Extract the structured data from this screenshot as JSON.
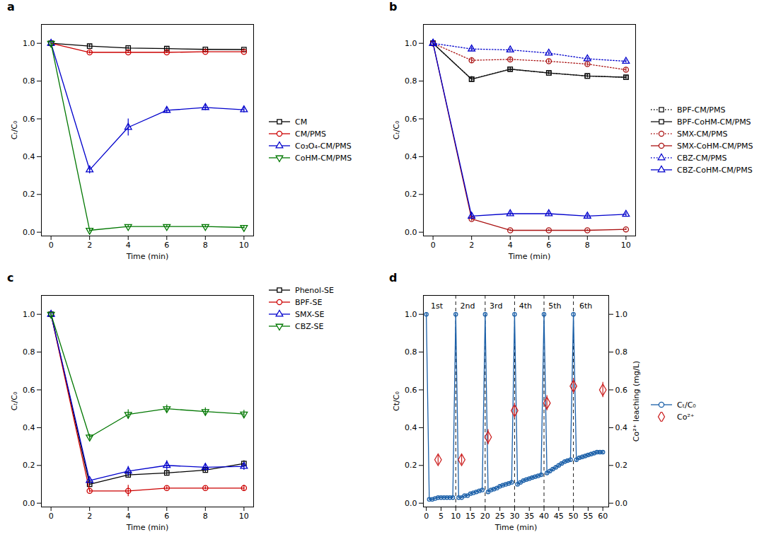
{
  "chart_data": [
    {
      "type": "line",
      "title": "a",
      "xlabel": "Time (min)",
      "ylabel": "Cₜ/C₀",
      "x": [
        0,
        2,
        4,
        6,
        8,
        10
      ],
      "xlim": [
        -0.5,
        10.5
      ],
      "xticks": [
        0,
        2,
        4,
        6,
        8,
        10
      ],
      "ylim": [
        -0.02,
        1.1
      ],
      "yticks": [
        {
          "value": 0,
          "label": "0.0"
        },
        0.2,
        0.4,
        0.6,
        0.8,
        {
          "value": 1,
          "label": "1.0"
        }
      ],
      "grid": false,
      "legend": "right",
      "series": [
        {
          "name": "CM",
          "color": "#000000",
          "marker": "square",
          "line_style": "solid",
          "values": [
            1.0,
            0.985,
            0.975,
            0.972,
            0.968,
            0.967
          ],
          "errors": [
            0.005,
            0.008,
            0.007,
            0.006,
            0.006,
            0.006
          ]
        },
        {
          "name": "CM/PMS",
          "color": "#cc0000",
          "marker": "circle",
          "line_style": "solid",
          "values": [
            1.0,
            0.952,
            0.952,
            0.952,
            0.955,
            0.955
          ],
          "errors": [
            0.005,
            0.008,
            0.006,
            0.006,
            0.006,
            0.006
          ]
        },
        {
          "name": "Co₃O₄-CM/PMS",
          "color": "#0000cc",
          "marker": "triangle-up",
          "line_style": "solid",
          "values": [
            1.0,
            0.33,
            0.555,
            0.645,
            0.66,
            0.648
          ],
          "errors": [
            0.005,
            0.02,
            0.045,
            0.015,
            0.015,
            0.015
          ]
        },
        {
          "name": "CoHM-CM/PMS",
          "color": "#007700",
          "marker": "triangle-down",
          "line_style": "solid",
          "values": [
            1.0,
            0.01,
            0.03,
            0.03,
            0.03,
            0.025
          ],
          "errors": [
            0.005,
            0.01,
            0.007,
            0.007,
            0.007,
            0.007
          ]
        }
      ]
    },
    {
      "type": "line",
      "title": "b",
      "xlabel": "Time (min)",
      "ylabel": "Cₜ/C₀",
      "x": [
        0,
        2,
        4,
        6,
        8,
        10
      ],
      "xlim": [
        -0.5,
        10.5
      ],
      "xticks": [
        0,
        2,
        4,
        6,
        8,
        10
      ],
      "ylim": [
        -0.02,
        1.1
      ],
      "yticks": [
        {
          "value": 0,
          "label": "0.0"
        },
        0.2,
        0.4,
        0.6,
        0.8,
        {
          "value": 1,
          "label": "1.0"
        }
      ],
      "grid": false,
      "legend": "right",
      "series": [
        {
          "name": "BPF-CM/PMS",
          "color": "#111111",
          "marker": "square",
          "line_style": "dotted",
          "values": [
            1.0,
            0.81,
            0.863,
            0.843,
            0.827,
            0.82
          ],
          "errors": [
            0.005,
            0.015,
            0.01,
            0.01,
            0.01,
            0.01
          ]
        },
        {
          "name": "BPF-CoHM-CM/PMS",
          "color": "#111111",
          "marker": "square",
          "line_style": "solid",
          "values": [
            1.0,
            0.81,
            0.863,
            0.843,
            0.827,
            0.82
          ],
          "errors": [
            0.005,
            0.012,
            0.008,
            0.008,
            0.008,
            0.008
          ]
        },
        {
          "name": "SMX-CM/PMS",
          "color": "#aa1111",
          "marker": "circle",
          "line_style": "dotted",
          "values": [
            1.0,
            0.91,
            0.915,
            0.905,
            0.89,
            0.86
          ],
          "errors": [
            0.005,
            0.015,
            0.01,
            0.01,
            0.01,
            0.01
          ]
        },
        {
          "name": "SMX-CoHM-CM/PMS",
          "color": "#aa1111",
          "marker": "circle",
          "line_style": "solid",
          "values": [
            1.0,
            0.07,
            0.01,
            0.01,
            0.01,
            0.015
          ],
          "errors": [
            0.005,
            0.01,
            0.005,
            0.005,
            0.005,
            0.005
          ]
        },
        {
          "name": "CBZ-CM/PMS",
          "color": "#0000cc",
          "marker": "triangle-up",
          "line_style": "dotted",
          "values": [
            1.0,
            0.97,
            0.965,
            0.948,
            0.918,
            0.905
          ],
          "errors": [
            0.005,
            0.01,
            0.008,
            0.008,
            0.008,
            0.008
          ]
        },
        {
          "name": "CBZ-CoHM-CM/PMS",
          "color": "#0000cc",
          "marker": "triangle-up",
          "line_style": "solid",
          "values": [
            1.0,
            0.085,
            0.098,
            0.098,
            0.085,
            0.095
          ],
          "errors": [
            0.005,
            0.015,
            0.01,
            0.01,
            0.01,
            0.01
          ]
        }
      ]
    },
    {
      "type": "line",
      "title": "c",
      "xlabel": "Time (min)",
      "ylabel": "Cₜ/C₀",
      "x": [
        0,
        2,
        4,
        6,
        8,
        10
      ],
      "xlim": [
        -0.5,
        10.5
      ],
      "xticks": [
        0,
        2,
        4,
        6,
        8,
        10
      ],
      "ylim": [
        -0.02,
        1.1
      ],
      "yticks": [
        {
          "value": 0,
          "label": "0.0"
        },
        0.2,
        0.4,
        0.6,
        0.8,
        {
          "value": 1,
          "label": "1.0"
        }
      ],
      "grid": false,
      "legend": "upper right",
      "series": [
        {
          "name": "Phenol-SE",
          "color": "#000000",
          "marker": "square",
          "line_style": "solid",
          "values": [
            1.0,
            0.1,
            0.15,
            0.16,
            0.175,
            0.21
          ],
          "errors": [
            0.005,
            0.01,
            0.012,
            0.012,
            0.012,
            0.015
          ]
        },
        {
          "name": "BPF-SE",
          "color": "#cc0000",
          "marker": "circle",
          "line_style": "solid",
          "values": [
            1.0,
            0.065,
            0.065,
            0.08,
            0.08,
            0.08
          ],
          "errors": [
            0.005,
            0.008,
            0.03,
            0.008,
            0.008,
            0.015
          ]
        },
        {
          "name": "SMX-SE",
          "color": "#0000cc",
          "marker": "triangle-up",
          "line_style": "solid",
          "values": [
            1.0,
            0.12,
            0.17,
            0.2,
            0.19,
            0.195
          ],
          "errors": [
            0.005,
            0.01,
            0.025,
            0.025,
            0.02,
            0.02
          ]
        },
        {
          "name": "CBZ-SE",
          "color": "#007700",
          "marker": "triangle-down",
          "line_style": "solid",
          "values": [
            1.0,
            0.35,
            0.47,
            0.5,
            0.485,
            0.472
          ],
          "errors": [
            0.005,
            0.015,
            0.025,
            0.02,
            0.02,
            0.02
          ]
        }
      ]
    },
    {
      "type": "line",
      "title": "d",
      "xlabel": "Time (min)",
      "ylabel": "Ct/C₀",
      "y2label": "Co²⁺ leaching (mg/L)",
      "xlim": [
        -1,
        62
      ],
      "xticks": [
        0,
        5,
        10,
        15,
        20,
        25,
        30,
        35,
        40,
        45,
        50,
        55,
        60
      ],
      "ylim": [
        -0.02,
        1.1
      ],
      "yticks": [
        {
          "value": 0,
          "label": "0.0"
        },
        0.2,
        0.4,
        0.6,
        0.8,
        {
          "value": 1,
          "label": "1.0"
        }
      ],
      "y2lim": [
        -0.02,
        1.1
      ],
      "y2ticks": [
        {
          "value": 0,
          "label": "0.0"
        },
        0.2,
        0.4,
        0.6,
        0.8,
        {
          "value": 1,
          "label": "1.0"
        }
      ],
      "grid": false,
      "legend": "right",
      "vlines": [
        10,
        20,
        30,
        40,
        50
      ],
      "annotations": [
        {
          "text": "1st",
          "x": 1.5,
          "y": 1.03
        },
        {
          "text": "2nd",
          "x": 11.5,
          "y": 1.03
        },
        {
          "text": "3rd",
          "x": 21.5,
          "y": 1.03
        },
        {
          "text": "4th",
          "x": 31.5,
          "y": 1.03
        },
        {
          "text": "5th",
          "x": 41.5,
          "y": 1.03
        },
        {
          "text": "6th",
          "x": 52,
          "y": 1.03
        }
      ],
      "series": [
        {
          "name": "Cₜ/C₀",
          "color": "#1a5fa8",
          "marker": "circle",
          "line_style": "solid",
          "x": [
            0,
            1,
            2,
            3,
            4,
            5,
            6,
            7,
            8,
            9,
            10,
            11,
            12,
            13,
            14,
            15,
            16,
            17,
            18,
            19,
            20,
            21,
            22,
            23,
            24,
            25,
            26,
            27,
            28,
            29,
            30,
            31,
            32,
            33,
            34,
            35,
            36,
            37,
            38,
            39,
            40,
            41,
            42,
            43,
            44,
            45,
            46,
            47,
            48,
            49,
            50,
            51,
            52,
            53,
            54,
            55,
            56,
            57,
            58,
            59,
            60
          ],
          "values": [
            1.0,
            0.02,
            0.02,
            0.025,
            0.03,
            0.03,
            0.03,
            0.03,
            0.03,
            0.03,
            1.0,
            0.03,
            0.03,
            0.04,
            0.04,
            0.05,
            0.055,
            0.06,
            0.065,
            0.07,
            1.0,
            0.06,
            0.07,
            0.075,
            0.08,
            0.09,
            0.095,
            0.1,
            0.105,
            0.11,
            1.0,
            0.1,
            0.11,
            0.12,
            0.125,
            0.13,
            0.135,
            0.14,
            0.145,
            0.15,
            1.0,
            0.16,
            0.17,
            0.18,
            0.19,
            0.2,
            0.21,
            0.22,
            0.225,
            0.23,
            1.0,
            0.23,
            0.24,
            0.245,
            0.25,
            0.255,
            0.26,
            0.265,
            0.27,
            0.27,
            0.27
          ],
          "errors": [
            0.01,
            0.005,
            0.005,
            0.005,
            0.005,
            0.005,
            0.005,
            0.005,
            0.005,
            0.005,
            0.01,
            0.005,
            0.005,
            0.005,
            0.005,
            0.005,
            0.005,
            0.005,
            0.005,
            0.005,
            0.01,
            0.006,
            0.006,
            0.006,
            0.006,
            0.006,
            0.006,
            0.006,
            0.006,
            0.006,
            0.01,
            0.008,
            0.008,
            0.008,
            0.008,
            0.008,
            0.008,
            0.008,
            0.008,
            0.008,
            0.01,
            0.01,
            0.01,
            0.01,
            0.01,
            0.01,
            0.01,
            0.01,
            0.01,
            0.01,
            0.01,
            0.01,
            0.01,
            0.01,
            0.01,
            0.01,
            0.01,
            0.01,
            0.01,
            0.01,
            0.01
          ]
        },
        {
          "name": "Co²⁺",
          "type": "scatter",
          "axis": "y2",
          "color": "#cc2222",
          "marker": "diamond",
          "x": [
            4,
            12,
            21,
            30,
            41,
            50,
            60
          ],
          "values": [
            0.23,
            0.23,
            0.35,
            0.49,
            0.53,
            0.62,
            0.6
          ],
          "errors": [
            0.025,
            0.025,
            0.04,
            0.04,
            0.04,
            0.04,
            0.04
          ]
        }
      ]
    }
  ]
}
